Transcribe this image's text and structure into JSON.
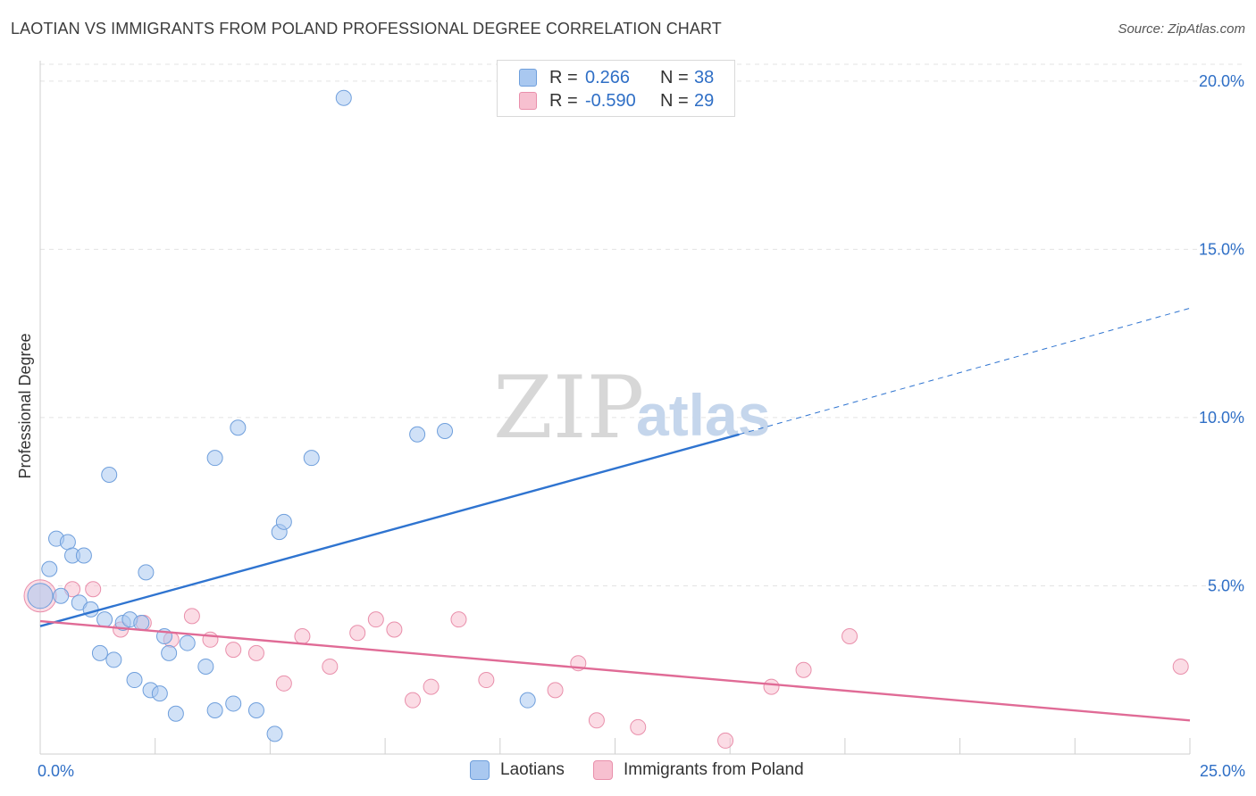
{
  "header": {
    "title": "LAOTIAN VS IMMIGRANTS FROM POLAND PROFESSIONAL DEGREE CORRELATION CHART",
    "source": "Source: ZipAtlas.com"
  },
  "watermark": {
    "zip": "ZIP",
    "atlas": "atlas"
  },
  "legend": {
    "rows": [
      {
        "r_label": "R =",
        "r_value": "0.266",
        "n_label": "N =",
        "n_value": "38",
        "color": "#a9c8f0",
        "border": "#6f9fdc"
      },
      {
        "r_label": "R =",
        "r_value": "-0.590",
        "n_label": "N =",
        "n_value": "29",
        "color": "#f7c0d0",
        "border": "#e98fab"
      }
    ]
  },
  "bottom_legend": {
    "items": [
      "Laotians",
      "Immigrants from Poland"
    ]
  },
  "colors": {
    "blue_fill": "#a9c8f0",
    "blue_stroke": "#6f9fdc",
    "blue_line": "#2f74d0",
    "pink_fill": "#f7c0d0",
    "pink_stroke": "#e98fab",
    "pink_line": "#e06b96",
    "grid": "#e3e3e3",
    "axis": "#cfcfcf"
  },
  "chart_data": {
    "type": "scatter",
    "title": "LAOTIAN VS IMMIGRANTS FROM POLAND PROFESSIONAL DEGREE CORRELATION CHART",
    "ylabel": "Professional Degree",
    "xlabel": "",
    "xlim": [
      0,
      25
    ],
    "ylim": [
      0,
      20.5
    ],
    "x_tick_labels": [
      {
        "value": 0,
        "label": "0.0%"
      },
      {
        "value": 25,
        "label": "25.0%"
      }
    ],
    "y_tick_labels": [
      {
        "value": 5,
        "label": "5.0%"
      },
      {
        "value": 10,
        "label": "10.0%"
      },
      {
        "value": 15,
        "label": "15.0%"
      },
      {
        "value": 20,
        "label": "20.0%"
      }
    ],
    "grid": true,
    "legend_position": "top-center",
    "series": [
      {
        "name": "Laotians",
        "R": 0.266,
        "N": 38,
        "trend": {
          "x": [
            0,
            15.2
          ],
          "y": [
            3.8,
            9.5
          ],
          "dashed_to": [
            25.0,
            13.25
          ]
        },
        "points": [
          {
            "x": 0.0,
            "y": 4.7,
            "r": 14
          },
          {
            "x": 0.2,
            "y": 5.5
          },
          {
            "x": 0.35,
            "y": 6.4
          },
          {
            "x": 0.45,
            "y": 4.7
          },
          {
            "x": 0.6,
            "y": 6.3
          },
          {
            "x": 0.7,
            "y": 5.9
          },
          {
            "x": 0.85,
            "y": 4.5
          },
          {
            "x": 0.95,
            "y": 5.9
          },
          {
            "x": 1.1,
            "y": 4.3
          },
          {
            "x": 1.3,
            "y": 3.0
          },
          {
            "x": 1.4,
            "y": 4.0
          },
          {
            "x": 1.5,
            "y": 8.3
          },
          {
            "x": 1.6,
            "y": 2.8
          },
          {
            "x": 1.8,
            "y": 3.9
          },
          {
            "x": 1.95,
            "y": 4.0
          },
          {
            "x": 2.05,
            "y": 2.2
          },
          {
            "x": 2.2,
            "y": 3.9
          },
          {
            "x": 2.3,
            "y": 5.4
          },
          {
            "x": 2.4,
            "y": 1.9
          },
          {
            "x": 2.6,
            "y": 1.8
          },
          {
            "x": 2.7,
            "y": 3.5
          },
          {
            "x": 2.8,
            "y": 3.0
          },
          {
            "x": 2.95,
            "y": 1.2
          },
          {
            "x": 3.2,
            "y": 3.3
          },
          {
            "x": 3.6,
            "y": 2.6
          },
          {
            "x": 3.8,
            "y": 8.8
          },
          {
            "x": 3.8,
            "y": 1.3
          },
          {
            "x": 4.2,
            "y": 1.5
          },
          {
            "x": 4.3,
            "y": 9.7
          },
          {
            "x": 4.7,
            "y": 1.3
          },
          {
            "x": 5.1,
            "y": 0.6
          },
          {
            "x": 5.2,
            "y": 6.6
          },
          {
            "x": 5.3,
            "y": 6.9
          },
          {
            "x": 5.9,
            "y": 8.8
          },
          {
            "x": 6.6,
            "y": 19.5
          },
          {
            "x": 8.2,
            "y": 9.5
          },
          {
            "x": 8.8,
            "y": 9.6
          },
          {
            "x": 10.6,
            "y": 1.6
          }
        ]
      },
      {
        "name": "Immigrants from Poland",
        "R": -0.59,
        "N": 29,
        "trend": {
          "x": [
            0,
            25
          ],
          "y": [
            3.95,
            1.0
          ]
        },
        "points": [
          {
            "x": 0.0,
            "y": 4.7,
            "r": 18
          },
          {
            "x": 0.7,
            "y": 4.9
          },
          {
            "x": 1.15,
            "y": 4.9
          },
          {
            "x": 1.75,
            "y": 3.7
          },
          {
            "x": 2.25,
            "y": 3.9
          },
          {
            "x": 2.85,
            "y": 3.4
          },
          {
            "x": 3.3,
            "y": 4.1
          },
          {
            "x": 3.7,
            "y": 3.4
          },
          {
            "x": 4.2,
            "y": 3.1
          },
          {
            "x": 4.7,
            "y": 3.0
          },
          {
            "x": 5.3,
            "y": 2.1
          },
          {
            "x": 5.7,
            "y": 3.5
          },
          {
            "x": 6.3,
            "y": 2.6
          },
          {
            "x": 6.9,
            "y": 3.6
          },
          {
            "x": 7.3,
            "y": 4.0
          },
          {
            "x": 7.7,
            "y": 3.7
          },
          {
            "x": 8.1,
            "y": 1.6
          },
          {
            "x": 8.5,
            "y": 2.0
          },
          {
            "x": 9.1,
            "y": 4.0
          },
          {
            "x": 9.7,
            "y": 2.2
          },
          {
            "x": 11.2,
            "y": 1.9
          },
          {
            "x": 11.7,
            "y": 2.7
          },
          {
            "x": 12.1,
            "y": 1.0
          },
          {
            "x": 13.0,
            "y": 0.8
          },
          {
            "x": 14.9,
            "y": 0.4
          },
          {
            "x": 15.9,
            "y": 2.0
          },
          {
            "x": 16.6,
            "y": 2.5
          },
          {
            "x": 17.6,
            "y": 3.5
          },
          {
            "x": 24.8,
            "y": 2.6
          }
        ]
      }
    ]
  }
}
